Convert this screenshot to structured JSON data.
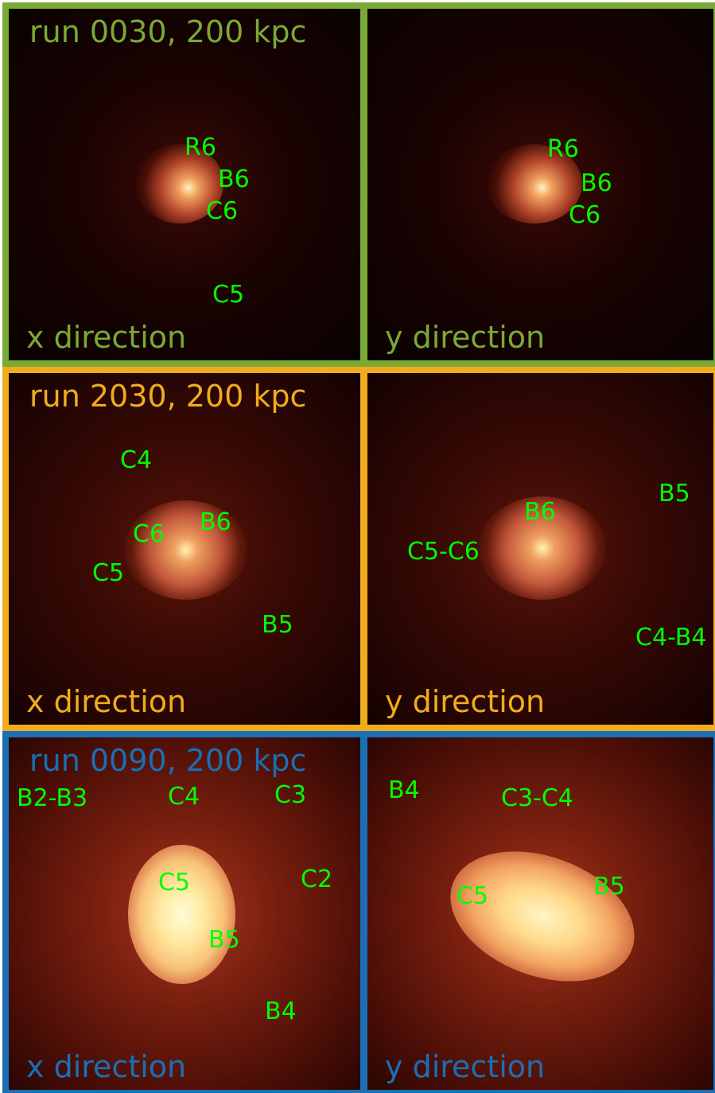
{
  "colors": {
    "green_frame": "#7aaa35",
    "orange_frame": "#f0ac1c",
    "blue_frame": "#1a6fb5",
    "label": "#00ff00"
  },
  "rows": [
    {
      "title": "run 0030, 200 kpc",
      "left": {
        "direction": "x direction",
        "labels": [
          "R6",
          "B6",
          "C6",
          "C5"
        ]
      },
      "right": {
        "direction": "y direction",
        "labels": [
          "R6",
          "B6",
          "C6"
        ]
      }
    },
    {
      "title": "run 2030, 200 kpc",
      "left": {
        "direction": "x direction",
        "labels": [
          "C4",
          "C6",
          "B6",
          "C5",
          "B5"
        ]
      },
      "right": {
        "direction": "y direction",
        "labels": [
          "B5",
          "B6",
          "C5-C6",
          "C4-B4"
        ]
      }
    },
    {
      "title": "run 0090, 200 kpc",
      "left": {
        "direction": "x direction",
        "labels": [
          "B2-B3",
          "C4",
          "C3",
          "C2",
          "C5",
          "B5",
          "B4"
        ]
      },
      "right": {
        "direction": "y direction",
        "labels": [
          "B4",
          "C3-C4",
          "C5",
          "B5"
        ]
      }
    }
  ]
}
